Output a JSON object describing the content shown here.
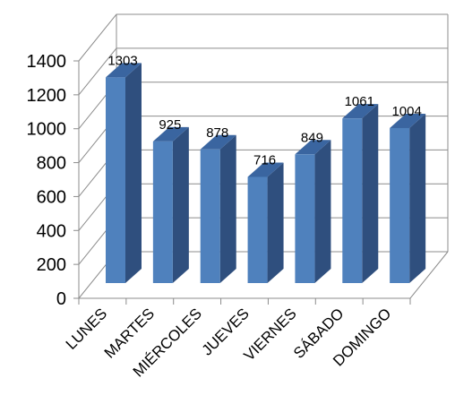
{
  "chart_data": {
    "type": "bar",
    "categories": [
      "LUNES",
      "MARTES",
      "MIÉRCOLES",
      "JUEVES",
      "VIERNES",
      "SÁBADO",
      "DOMINGO"
    ],
    "series": [
      {
        "values": [
          1303,
          925,
          878,
          716,
          849,
          1061,
          1004
        ]
      }
    ],
    "data_labels": [
      "1303",
      "925",
      "878",
      "716",
      "849",
      "1061",
      "1004"
    ],
    "yticks": [
      "0",
      "200",
      "400",
      "600",
      "800",
      "1000",
      "1200",
      "1400"
    ],
    "ylim": [
      0,
      1400
    ],
    "title": "",
    "xlabel": "",
    "ylabel": "",
    "grid": true,
    "three_d": true,
    "colors": {
      "front": "#4f81bd",
      "side": "#2f4f7e",
      "top": "#3a65a0"
    }
  }
}
